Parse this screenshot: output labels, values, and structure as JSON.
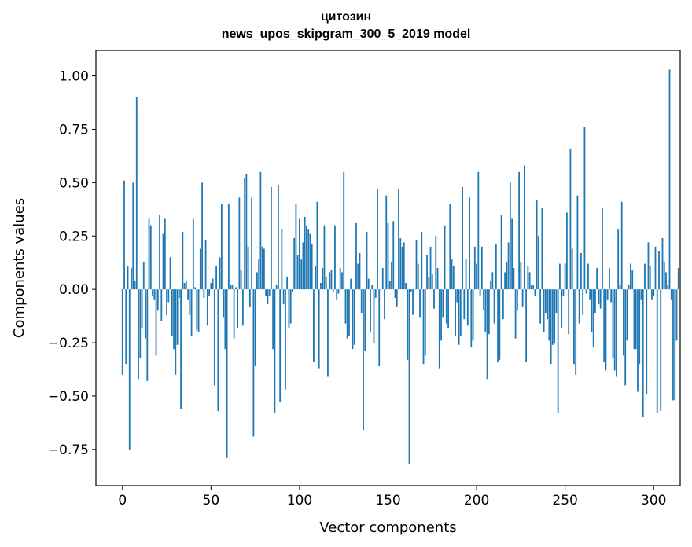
{
  "chart_data": {
    "type": "bar",
    "title_line1": "цитозин",
    "title_line2": "news_upos_skipgram_300_5_2019 model",
    "xlabel": "Vector components",
    "ylabel": "Components values",
    "xlim": [
      -15,
      315
    ],
    "ylim": [
      -0.92,
      1.12
    ],
    "xticks": [
      0,
      50,
      100,
      150,
      200,
      250,
      300
    ],
    "xtick_labels": [
      "0",
      "50",
      "100",
      "150",
      "200",
      "250",
      "300"
    ],
    "yticks": [
      -0.75,
      -0.5,
      -0.25,
      0.0,
      0.25,
      0.5,
      0.75,
      1.0
    ],
    "ytick_labels": [
      "−0.75",
      "−0.50",
      "−0.25",
      "0.00",
      "0.25",
      "0.50",
      "0.75",
      "1.00"
    ],
    "bar_color": "#1f77b4",
    "values": [
      -0.4,
      0.51,
      -0.35,
      0.11,
      -0.75,
      0.1,
      0.5,
      0.04,
      0.9,
      -0.42,
      -0.32,
      -0.18,
      0.13,
      -0.23,
      -0.43,
      0.33,
      0.3,
      -0.03,
      -0.05,
      -0.31,
      -0.1,
      0.35,
      -0.15,
      0.26,
      0.33,
      -0.12,
      -0.06,
      0.15,
      -0.22,
      -0.28,
      -0.4,
      -0.26,
      -0.04,
      -0.56,
      0.27,
      0.03,
      0.04,
      -0.05,
      -0.12,
      -0.22,
      0.33,
      0.01,
      -0.19,
      -0.2,
      0.19,
      0.5,
      -0.04,
      0.23,
      -0.17,
      -0.03,
      0.03,
      0.05,
      -0.45,
      0.11,
      -0.57,
      0.15,
      0.4,
      -0.13,
      -0.28,
      -0.79,
      0.4,
      0.02,
      0.02,
      -0.23,
      0.01,
      -0.18,
      0.43,
      0.09,
      -0.17,
      0.52,
      0.54,
      0.2,
      -0.08,
      0.43,
      -0.69,
      -0.36,
      0.08,
      0.14,
      0.55,
      0.2,
      0.19,
      -0.03,
      -0.07,
      -0.03,
      0.48,
      -0.28,
      -0.58,
      0.02,
      0.49,
      -0.53,
      0.28,
      -0.07,
      -0.47,
      0.06,
      -0.18,
      -0.16,
      -0.01,
      0.24,
      0.4,
      0.16,
      0.33,
      0.14,
      0.22,
      0.34,
      0.3,
      0.28,
      0.26,
      0.21,
      -0.34,
      0.11,
      0.41,
      -0.37,
      0.03,
      0.1,
      0.3,
      0.06,
      -0.41,
      0.08,
      0.09,
      -0.01,
      0.3,
      -0.05,
      -0.02,
      0.1,
      0.08,
      0.55,
      -0.16,
      -0.23,
      -0.22,
      0.05,
      -0.28,
      -0.26,
      0.31,
      0.12,
      0.17,
      -0.11,
      -0.66,
      -0.29,
      0.27,
      0.05,
      -0.2,
      0.02,
      -0.25,
      -0.04,
      0.47,
      -0.36,
      0.0,
      0.1,
      -0.14,
      0.44,
      0.31,
      0.04,
      0.13,
      0.32,
      -0.04,
      -0.08,
      0.47,
      0.24,
      0.2,
      0.22,
      0.03,
      -0.33,
      -0.82,
      -0.01,
      -0.12,
      0.0,
      0.23,
      0.12,
      -0.13,
      0.27,
      -0.35,
      -0.31,
      0.16,
      0.06,
      0.2,
      0.07,
      -0.09,
      0.25,
      0.1,
      -0.37,
      -0.24,
      -0.13,
      0.3,
      -0.16,
      -0.18,
      0.4,
      0.14,
      0.11,
      -0.22,
      -0.06,
      -0.26,
      -0.22,
      0.48,
      -0.14,
      0.14,
      -0.17,
      0.43,
      -0.27,
      -0.24,
      0.2,
      0.12,
      0.55,
      -0.03,
      0.2,
      -0.1,
      -0.2,
      -0.42,
      -0.21,
      0.04,
      0.08,
      -0.16,
      0.21,
      -0.34,
      -0.33,
      0.35,
      -0.14,
      0.08,
      0.13,
      0.22,
      0.5,
      0.33,
      0.1,
      -0.23,
      -0.1,
      0.55,
      0.13,
      -0.08,
      0.58,
      -0.34,
      0.11,
      0.08,
      0.02,
      0.02,
      -0.03,
      0.42,
      0.25,
      -0.16,
      0.38,
      -0.2,
      -0.11,
      -0.14,
      -0.24,
      -0.35,
      -0.26,
      -0.25,
      -0.11,
      -0.58,
      0.12,
      -0.18,
      -0.03,
      0.12,
      0.36,
      -0.21,
      0.66,
      0.19,
      -0.35,
      -0.4,
      0.44,
      -0.16,
      0.17,
      -0.12,
      0.76,
      -0.02,
      0.12,
      -0.05,
      -0.2,
      -0.27,
      -0.11,
      0.1,
      -0.07,
      -0.09,
      0.38,
      -0.34,
      -0.38,
      -0.05,
      0.1,
      -0.06,
      -0.32,
      -0.38,
      -0.41,
      0.28,
      0.02,
      0.41,
      -0.31,
      -0.45,
      -0.24,
      0.02,
      0.12,
      0.09,
      -0.28,
      -0.28,
      -0.48,
      -0.35,
      -0.05,
      -0.6,
      0.12,
      -0.49,
      0.22,
      0.11,
      -0.05,
      -0.03,
      0.2,
      -0.58,
      0.18,
      -0.57,
      0.24,
      0.13,
      0.08,
      0.02,
      1.03,
      -0.05,
      -0.52,
      -0.52,
      -0.24,
      0.1
    ]
  }
}
